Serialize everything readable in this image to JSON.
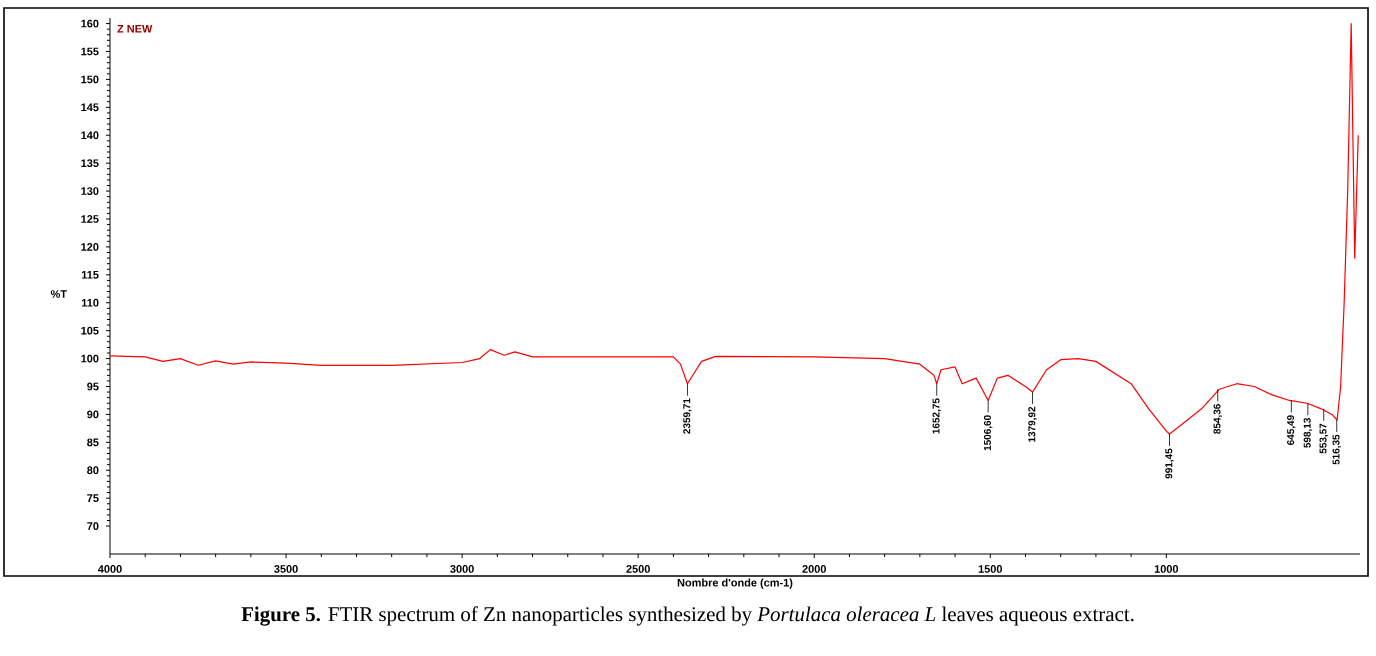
{
  "chart_data": {
    "type": "line",
    "title": "**Figure 5.** FTIR spectrum of Zn nanoparticles synthesized by *Portulaca oleracea L* leaves aqueous extract.",
    "xlabel": "Nombre d'onde (cm-1)",
    "ylabel": "%T",
    "xlim": [
      4000,
      450
    ],
    "ylim": [
      65,
      161
    ],
    "xticks": [
      4000,
      3500,
      3000,
      2500,
      2000,
      1500,
      1000
    ],
    "yticks": [
      70,
      75,
      80,
      85,
      90,
      95,
      100,
      105,
      110,
      115,
      120,
      125,
      130,
      135,
      140,
      145,
      150,
      155,
      160
    ],
    "grid": false,
    "series": [
      {
        "color": "#ff0000",
        "x": [
          4000,
          3900,
          3850,
          3800,
          3750,
          3700,
          3650,
          3600,
          3500,
          3400,
          3200,
          3000,
          2950,
          2920,
          2880,
          2850,
          2800,
          2600,
          2400,
          2380,
          2360,
          2340,
          2320,
          2280,
          2000,
          1800,
          1700,
          1660,
          1652,
          1640,
          1600,
          1580,
          1540,
          1506,
          1480,
          1450,
          1400,
          1380,
          1340,
          1300,
          1250,
          1200,
          1100,
          1050,
          1000,
          991,
          950,
          900,
          850,
          800,
          750,
          700,
          650,
          600,
          560,
          530,
          515,
          505,
          495,
          485,
          475,
          465,
          455
        ],
        "values": [
          100.5,
          100.3,
          99.5,
          100,
          98.8,
          99.6,
          99,
          99.4,
          99.2,
          98.8,
          98.8,
          99.3,
          100,
          101.6,
          100.6,
          101.2,
          100.3,
          100.3,
          100.3,
          99,
          95.5,
          97.5,
          99.5,
          100.4,
          100.3,
          100,
          99,
          97,
          95.5,
          98,
          98.5,
          95.5,
          96.5,
          92.5,
          96.5,
          97,
          95,
          94,
          98,
          99.8,
          100,
          99.5,
          95.5,
          91,
          87,
          86.5,
          88.5,
          91,
          94.5,
          95.5,
          95,
          93.5,
          92.5,
          92,
          91,
          90,
          89,
          95,
          110,
          130,
          160,
          118,
          140
        ]
      }
    ],
    "annotations": [
      "Z NEW",
      {
        "text": "2359,71",
        "x": 2360,
        "y": 95.5
      },
      {
        "text": "1652,75",
        "x": 1652,
        "y": 95.5
      },
      {
        "text": "1506,60",
        "x": 1506,
        "y": 92.5
      },
      {
        "text": "1379,92",
        "x": 1380,
        "y": 94
      },
      {
        "text": "991,45",
        "x": 991,
        "y": 86.5
      },
      {
        "text": "854,36",
        "x": 854,
        "y": 94.5
      },
      {
        "text": "645,49",
        "x": 645,
        "y": 92.5
      },
      {
        "text": "598,13",
        "x": 598,
        "y": 92
      },
      {
        "text": "553,57",
        "x": 553,
        "y": 91
      },
      {
        "text": "516,35",
        "x": 516,
        "y": 89
      }
    ]
  }
}
